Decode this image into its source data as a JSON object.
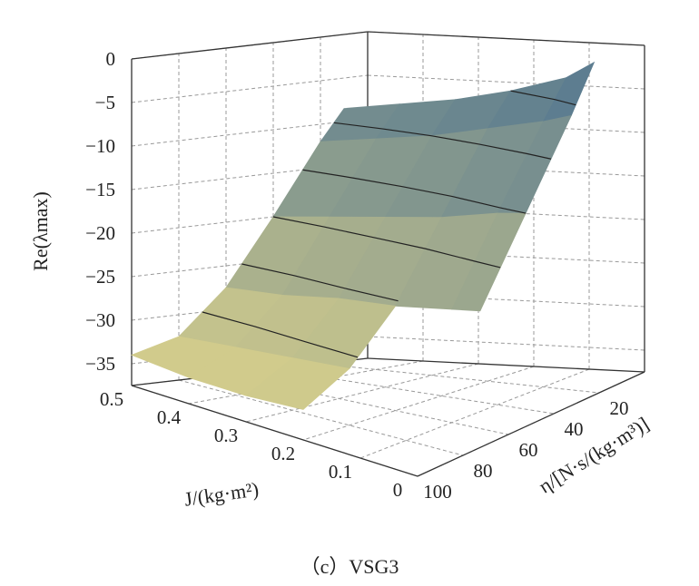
{
  "chart_data": {
    "type": "surface3d",
    "caption": "（c）VSG3",
    "xlabel": "J/(kg·m²)",
    "ylabel": "η/[N·s/(kg·m³)]",
    "zlabel": "Re(λmax)",
    "xlim": [
      0,
      0.5
    ],
    "ylim": [
      0,
      100
    ],
    "zlim": [
      -37.5,
      0
    ],
    "x_ticks": [
      "0.5",
      "0.4",
      "0.3",
      "0.2",
      "0.1",
      "0"
    ],
    "x_tick_values": [
      0.5,
      0.4,
      0.3,
      0.2,
      0.1,
      0
    ],
    "y_ticks": [
      "100",
      "80",
      "60",
      "40",
      "20"
    ],
    "y_tick_values": [
      100,
      80,
      60,
      40,
      20
    ],
    "z_ticks": [
      "0",
      "−5",
      "−10",
      "−15",
      "−20",
      "−25",
      "−30",
      "−35"
    ],
    "z_tick_values": [
      0,
      -5,
      -10,
      -15,
      -20,
      -25,
      -30,
      -35
    ],
    "grid": true,
    "colormap": {
      "low": "#d8d08c",
      "high": "#4c7290"
    },
    "contour_levels": [
      -5,
      -10,
      -15,
      -20,
      -25,
      -30
    ],
    "surface": {
      "J": [
        0.05,
        0.1,
        0.2,
        0.3,
        0.4,
        0.5
      ],
      "eta": [
        10,
        20,
        40,
        60,
        80,
        100
      ],
      "z": [
        [
          -1,
          -3,
          -5,
          -6.5,
          -7.5,
          -8.5
        ],
        [
          -6,
          -7,
          -8.5,
          -10,
          -11,
          -12
        ],
        [
          -15,
          -15.5,
          -17,
          -18,
          -19,
          -20
        ],
        [
          -24,
          -24.5,
          -25.5,
          -26,
          -27,
          -27.5
        ],
        [
          null,
          null,
          -31,
          -31.5,
          -32,
          -32.5
        ],
        [
          null,
          null,
          -34,
          -34.5,
          -34.5,
          -34
        ]
      ]
    }
  }
}
